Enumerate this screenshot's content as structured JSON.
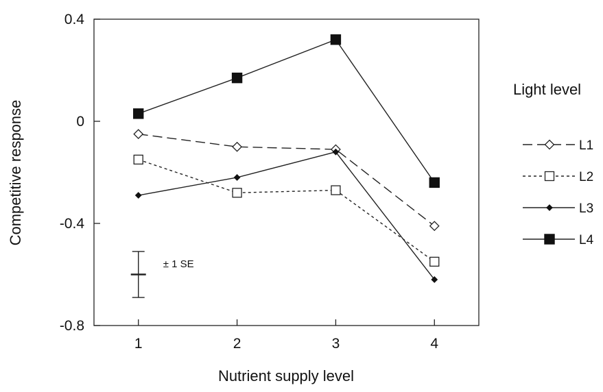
{
  "chart_data": {
    "type": "line",
    "title": "",
    "xlabel": "Nutrient supply  level",
    "ylabel": "Competitive response",
    "x": [
      1,
      2,
      3,
      4
    ],
    "x_tick_labels": [
      "1",
      "2",
      "3",
      "4"
    ],
    "xlim": [
      0.55,
      4.45
    ],
    "ylim": [
      -0.8,
      0.4
    ],
    "y_ticks": [
      0.4,
      0,
      -0.4,
      -0.8
    ],
    "y_tick_labels": [
      "0.4",
      "0",
      "-0.4",
      "-0.8"
    ],
    "grid": false,
    "legend": {
      "title": "Light level",
      "position": "right"
    },
    "series": [
      {
        "name": "L1",
        "values": [
          -0.05,
          -0.1,
          -0.11,
          -0.41
        ],
        "line_style": "dashed",
        "marker": "open-diamond"
      },
      {
        "name": "L2",
        "values": [
          -0.15,
          -0.28,
          -0.27,
          -0.55
        ],
        "line_style": "dotted",
        "marker": "open-square"
      },
      {
        "name": "L3",
        "values": [
          -0.29,
          -0.22,
          -0.12,
          -0.62
        ],
        "line_style": "solid",
        "marker": "filled-diamond"
      },
      {
        "name": "L4",
        "values": [
          0.03,
          0.17,
          0.32,
          -0.24
        ],
        "line_style": "solid",
        "marker": "filled-square"
      }
    ],
    "error_bar": {
      "label": "± 1 SE",
      "center": -0.6,
      "half_width": 0.09,
      "x": 1
    }
  }
}
